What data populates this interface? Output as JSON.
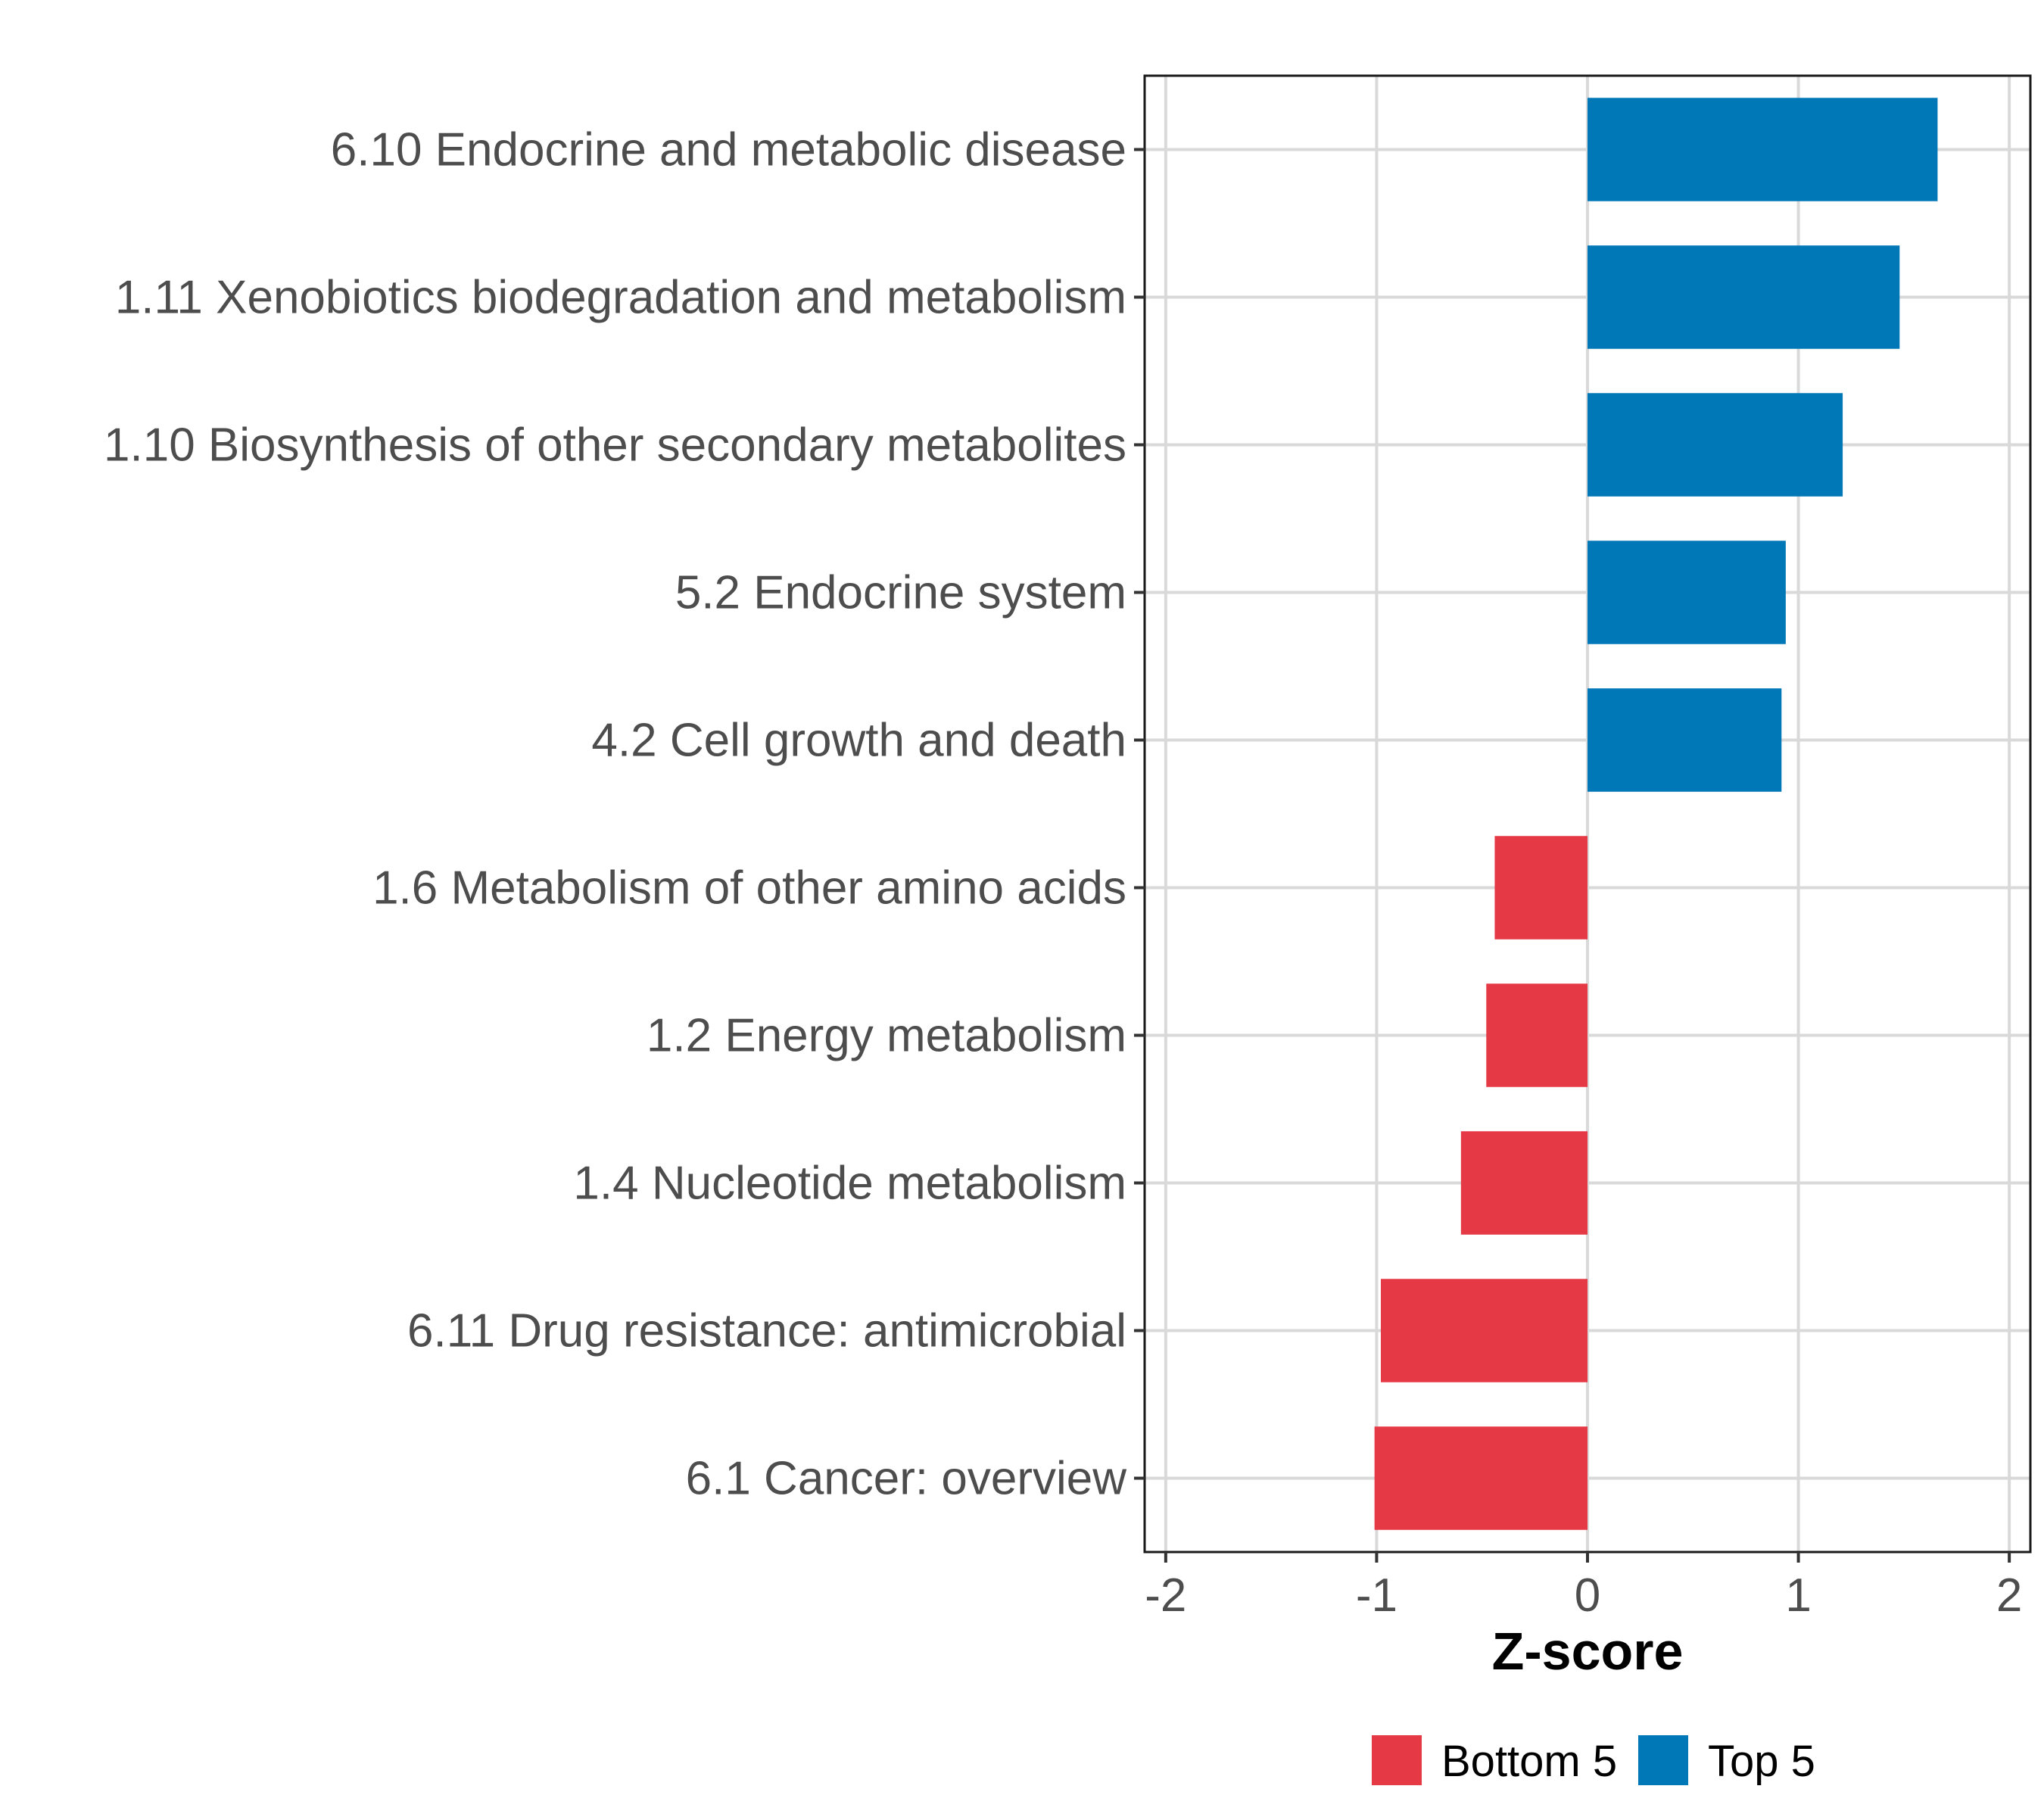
{
  "chart_data": {
    "type": "bar",
    "orientation": "horizontal",
    "xlabel": "Z-score",
    "ylabel": "",
    "xlim": [
      -2.1,
      2.1
    ],
    "xticks": [
      -2,
      -1,
      0,
      1,
      2
    ],
    "xtick_labels": [
      "-2",
      "-1",
      "0",
      "1",
      "2"
    ],
    "grid": true,
    "legend_position": "bottom",
    "categories": [
      "6.10 Endocrine and metabolic disease",
      "1.11 Xenobiotics biodegradation and metabolism",
      "1.10 Biosynthesis of other secondary metabolites",
      "5.2 Endocrine system",
      "4.2 Cell growth and death",
      "1.6 Metabolism of other amino acids",
      "1.2 Energy metabolism",
      "1.4 Nucleotide metabolism",
      "6.11 Drug resistance: antimicrobial",
      "6.1 Cancer: overview"
    ],
    "values": [
      1.66,
      1.48,
      1.21,
      0.94,
      0.92,
      -0.44,
      -0.48,
      -0.6,
      -0.98,
      -1.01
    ],
    "groups": [
      "Top 5",
      "Top 5",
      "Top 5",
      "Top 5",
      "Top 5",
      "Bottom 5",
      "Bottom 5",
      "Bottom 5",
      "Bottom 5",
      "Bottom 5"
    ],
    "legend": [
      {
        "name": "Bottom 5",
        "color": "#E63946"
      },
      {
        "name": "Top 5",
        "color": "#0077B6"
      }
    ]
  }
}
